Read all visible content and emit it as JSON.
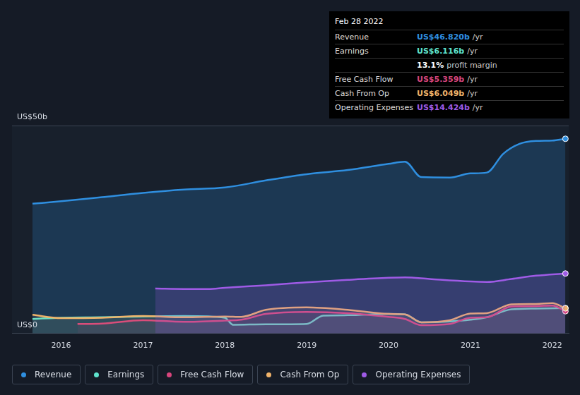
{
  "chart_data": {
    "type": "line",
    "series": [
      {
        "name": "Revenue",
        "color": "#2f8fe0",
        "x": [
          2015.65,
          2016.0,
          2016.5,
          2017.0,
          2017.5,
          2018.0,
          2018.5,
          2019.0,
          2019.5,
          2020.0,
          2020.2,
          2020.4,
          2020.75,
          2021.0,
          2021.2,
          2021.4,
          2021.6,
          2021.8,
          2022.0,
          2022.16
        ],
        "values": [
          31.2,
          31.8,
          32.8,
          33.8,
          34.6,
          35.1,
          36.8,
          38.3,
          39.3,
          40.8,
          41.3,
          37.6,
          37.5,
          38.5,
          38.7,
          43.2,
          45.6,
          46.3,
          46.4,
          46.82
        ]
      },
      {
        "name": "Earnings",
        "color": "#5fe3cd",
        "x": [
          2015.65,
          2016.0,
          2016.5,
          2017.0,
          2017.5,
          2018.0,
          2018.1,
          2018.5,
          2019.0,
          2019.2,
          2019.5,
          2020.0,
          2020.2,
          2020.4,
          2020.75,
          2021.0,
          2021.2,
          2021.5,
          2021.8,
          2022.16
        ],
        "values": [
          3.5,
          3.8,
          3.9,
          4.1,
          4.2,
          3.8,
          2.1,
          2.2,
          2.3,
          4.3,
          4.4,
          4.7,
          4.6,
          2.7,
          2.9,
          3.3,
          3.9,
          5.8,
          6.0,
          6.116
        ]
      },
      {
        "name": "Free Cash Flow",
        "color": "#d8457c",
        "x": [
          2016.2,
          2016.5,
          2017.0,
          2017.5,
          2018.0,
          2018.2,
          2018.5,
          2019.0,
          2019.5,
          2020.0,
          2020.2,
          2020.4,
          2020.75,
          2021.0,
          2021.2,
          2021.5,
          2021.8,
          2022.0,
          2022.16
        ],
        "values": [
          2.3,
          2.4,
          3.2,
          2.8,
          3.1,
          3.3,
          4.7,
          5.2,
          4.9,
          4.0,
          3.5,
          2.0,
          2.3,
          3.8,
          3.9,
          6.5,
          6.6,
          6.7,
          5.359
        ]
      },
      {
        "name": "Cash From Op",
        "color": "#f0b36a",
        "x": [
          2015.65,
          2016.0,
          2016.5,
          2017.0,
          2017.5,
          2018.0,
          2018.2,
          2018.5,
          2019.0,
          2019.5,
          2020.0,
          2020.2,
          2020.4,
          2020.75,
          2021.0,
          2021.2,
          2021.5,
          2021.8,
          2022.0,
          2022.16
        ],
        "values": [
          4.5,
          3.7,
          3.8,
          4.2,
          3.9,
          4.1,
          4.0,
          5.7,
          6.3,
          5.7,
          4.7,
          4.6,
          2.7,
          3.2,
          4.8,
          4.9,
          7.0,
          7.1,
          7.3,
          6.049
        ]
      },
      {
        "name": "Operating Expenses",
        "color": "#9f5be6",
        "x": [
          2017.15,
          2017.5,
          2017.8,
          2018.0,
          2018.5,
          2019.0,
          2019.5,
          2020.0,
          2020.2,
          2020.5,
          2021.0,
          2021.2,
          2021.5,
          2021.8,
          2022.16
        ],
        "values": [
          10.8,
          10.7,
          10.7,
          11.0,
          11.6,
          12.3,
          12.9,
          13.4,
          13.5,
          13.1,
          12.5,
          12.4,
          13.1,
          13.9,
          14.424
        ]
      }
    ],
    "xlim": [
      2015.4,
      2022.2
    ],
    "xticks": [
      2016,
      2017,
      2018,
      2019,
      2020,
      2021,
      2022
    ],
    "ylim": [
      0,
      50
    ],
    "yticks": [
      {
        "value": 0,
        "label": "US$0"
      },
      {
        "value": 50,
        "label": "US$50b"
      }
    ],
    "grid": true,
    "legend": "bottom",
    "tooltip": {
      "title": "Feb 28 2022",
      "rows": [
        {
          "label": "Revenue",
          "value": "US$46.820b",
          "unit": "/yr"
        },
        {
          "label": "Earnings",
          "value": "US$6.116b",
          "unit": "/yr"
        },
        {
          "value": "13.1%",
          "unit": "profit margin"
        },
        {
          "label": "Free Cash Flow",
          "value": "US$5.359b",
          "unit": "/yr"
        },
        {
          "label": "Cash From Op",
          "value": "US$6.049b",
          "unit": "/yr"
        },
        {
          "label": "Operating Expenses",
          "value": "US$14.424b",
          "unit": "/yr"
        }
      ]
    }
  }
}
